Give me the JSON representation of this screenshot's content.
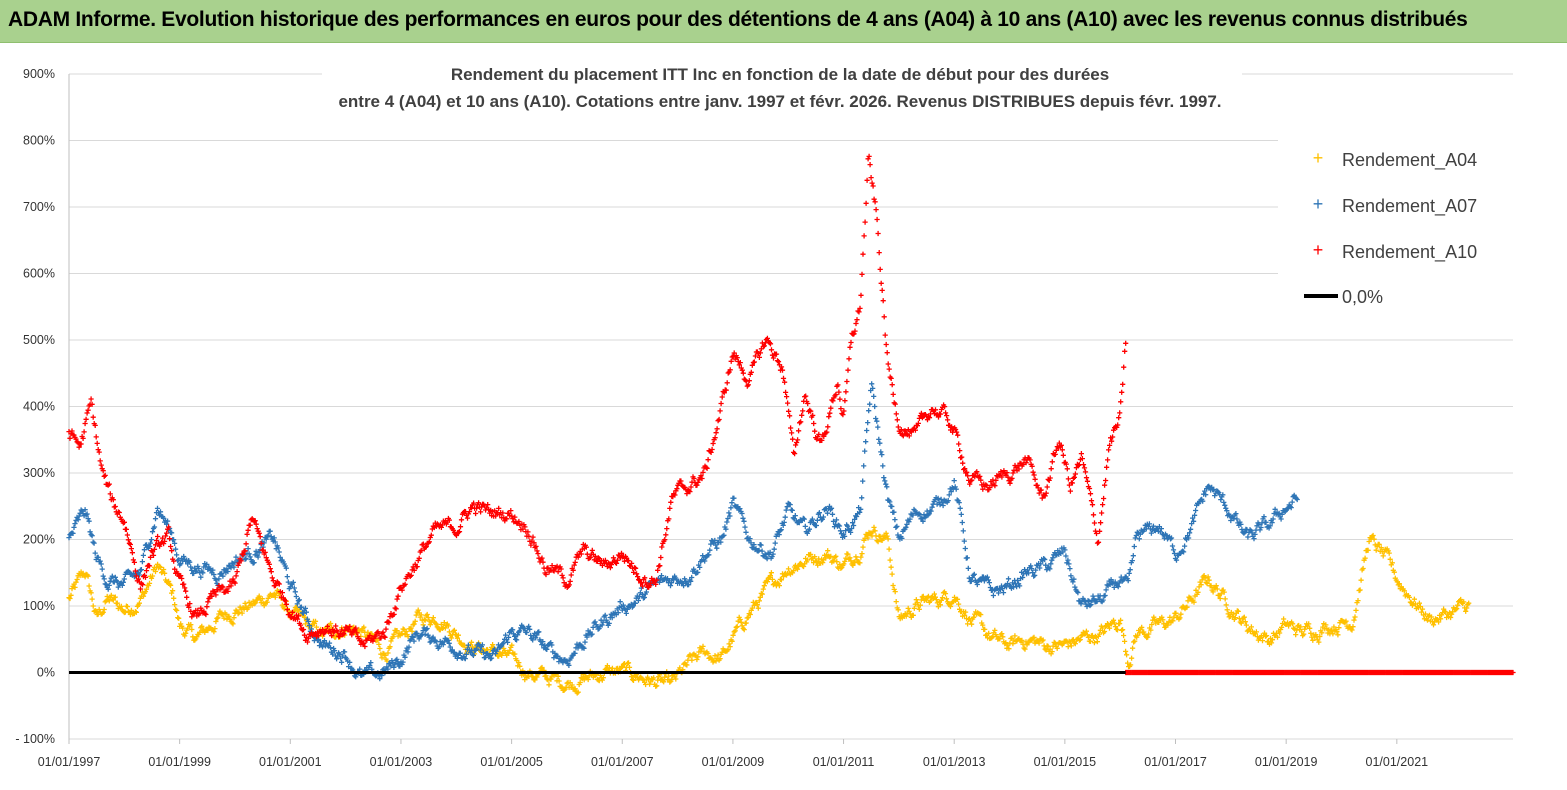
{
  "banner": {
    "title": "ADAM Informe. Evolution historique des performances en euros pour des détentions de 4 ans (A04) à 10 ans (A10) avec les revenus connus distribués"
  },
  "chart_data": {
    "type": "scatter",
    "title_line1": "Rendement du placement ITT Inc en fonction de la date de début pour des durées",
    "title_line2": "entre 4 (A04) et 10 ans (A10). Cotations entre janv. 1997 et févr. 2026. Revenus DISTRIBUES depuis févr. 1997.",
    "xlabel": "",
    "ylabel": "",
    "xlim": [
      1997.0,
      2023.1
    ],
    "ylim": [
      -100,
      900
    ],
    "y_ticks": [
      -100,
      0,
      100,
      200,
      300,
      400,
      500,
      600,
      700,
      800,
      900
    ],
    "y_tick_labels": [
      "- 100%",
      "0%",
      "100%",
      "200%",
      "300%",
      "400%",
      "500%",
      "600%",
      "700%",
      "800%",
      "900%"
    ],
    "x_ticks": [
      1997,
      1999,
      2001,
      2003,
      2005,
      2007,
      2009,
      2011,
      2013,
      2015,
      2017,
      2019,
      2021
    ],
    "x_tick_labels": [
      "01/01/1997",
      "01/01/1999",
      "01/01/2001",
      "01/01/2003",
      "01/01/2005",
      "01/01/2007",
      "01/01/2009",
      "01/01/2011",
      "01/01/2013",
      "01/01/2015",
      "01/01/2017",
      "01/01/2019",
      "01/01/2021"
    ],
    "grid": "horizontal",
    "legend_position": "right",
    "series": [
      {
        "name": "Rendement_A04",
        "color": "#ffc000",
        "x": [
          1997.0,
          1997.3,
          1997.5,
          1997.7,
          1998.0,
          1998.3,
          1998.6,
          1998.9,
          1999.0,
          1999.3,
          1999.7,
          2000.0,
          2000.3,
          2000.7,
          2001.0,
          2001.3,
          2001.6,
          2002.0,
          2002.3,
          2002.7,
          2003.0,
          2003.3,
          2003.7,
          2004.0,
          2004.3,
          2004.7,
          2005.0,
          2005.3,
          2005.7,
          2006.0,
          2006.3,
          2006.7,
          2007.0,
          2007.3,
          2007.6,
          2007.9,
          2008.2,
          2008.5,
          2008.8,
          2009.0,
          2009.3,
          2009.7,
          2010.0,
          2010.3,
          2010.7,
          2011.0,
          2011.3,
          2011.5,
          2011.8,
          2012.0,
          2012.3,
          2012.7,
          2013.0,
          2013.3,
          2013.7,
          2014.0,
          2014.3,
          2014.7,
          2015.0,
          2015.3,
          2015.7,
          2016.0,
          2016.15,
          2016.3,
          2016.7,
          2017.0,
          2017.3,
          2017.6,
          2018.0,
          2018.3,
          2018.7,
          2019.0,
          2019.3,
          2019.7,
          2020.0,
          2020.2,
          2020.5,
          2020.8,
          2021.0,
          2021.3,
          2021.6,
          2022.0,
          2022.3
        ],
        "y": [
          110,
          150,
          80,
          110,
          95,
          110,
          160,
          110,
          70,
          50,
          80,
          95,
          100,
          120,
          90,
          70,
          55,
          70,
          60,
          30,
          50,
          80,
          85,
          60,
          40,
          30,
          20,
          0,
          -10,
          -15,
          -10,
          0,
          0,
          -5,
          -15,
          -20,
          10,
          30,
          20,
          50,
          90,
          130,
          160,
          170,
          180,
          160,
          190,
          220,
          200,
          80,
          100,
          110,
          120,
          80,
          50,
          40,
          50,
          40,
          40,
          50,
          60,
          80,
          20,
          60,
          70,
          80,
          110,
          140,
          100,
          70,
          50,
          70,
          60,
          70,
          75,
          80,
          200,
          170,
          140,
          110,
          80,
          90,
          100
        ]
      },
      {
        "name": "Rendement_A07",
        "color": "#2e75b6",
        "x": [
          1997.0,
          1997.3,
          1997.5,
          1997.7,
          1998.0,
          1998.3,
          1998.6,
          1998.9,
          1999.0,
          1999.3,
          1999.7,
          2000.0,
          2000.3,
          2000.7,
          2001.0,
          2001.3,
          2001.6,
          2002.0,
          2002.3,
          2002.7,
          2003.0,
          2003.3,
          2003.7,
          2004.0,
          2004.3,
          2004.7,
          2005.0,
          2005.3,
          2005.7,
          2006.0,
          2006.3,
          2006.7,
          2007.0,
          2007.3,
          2007.6,
          2007.9,
          2008.2,
          2008.5,
          2008.8,
          2009.0,
          2009.3,
          2009.7,
          2010.0,
          2010.3,
          2010.7,
          2011.0,
          2011.3,
          2011.5,
          2011.8,
          2012.0,
          2012.3,
          2012.7,
          2013.0,
          2013.3,
          2013.7,
          2014.0,
          2014.3,
          2014.7,
          2015.0,
          2015.3,
          2015.7,
          2016.0,
          2016.15,
          2016.3,
          2016.7,
          2017.0,
          2017.3,
          2017.6,
          2018.0,
          2018.3,
          2018.7,
          2019.0,
          2019.2
        ],
        "y": [
          200,
          240,
          170,
          140,
          130,
          150,
          250,
          200,
          170,
          160,
          150,
          170,
          180,
          200,
          130,
          80,
          40,
          30,
          -10,
          0,
          20,
          60,
          50,
          40,
          30,
          20,
          60,
          60,
          30,
          20,
          50,
          80,
          100,
          110,
          130,
          140,
          150,
          180,
          200,
          250,
          200,
          180,
          240,
          210,
          250,
          210,
          240,
          430,
          260,
          200,
          240,
          250,
          290,
          140,
          120,
          130,
          150,
          160,
          180,
          100,
          110,
          140,
          120,
          200,
          220,
          180,
          220,
          280,
          240,
          200,
          220,
          250,
          260
        ]
      },
      {
        "name": "Rendement_A10",
        "color": "#ff0000",
        "x": [
          1997.0,
          1997.2,
          1997.4,
          1997.6,
          1997.8,
          1998.0,
          1998.3,
          1998.5,
          1998.8,
          1999.0,
          1999.3,
          1999.6,
          2000.0,
          2000.3,
          2000.7,
          2001.0,
          2001.3,
          2001.6,
          2002.0,
          2002.3,
          2002.7,
          2003.0,
          2003.3,
          2003.6,
          2004.0,
          2004.3,
          2004.6,
          2005.0,
          2005.3,
          2005.6,
          2006.0,
          2006.3,
          2006.7,
          2007.0,
          2007.3,
          2007.6,
          2007.9,
          2008.2,
          2008.5,
          2008.8,
          2009.0,
          2009.3,
          2009.6,
          2009.9,
          2010.1,
          2010.3,
          2010.6,
          2010.9,
          2011.0,
          2011.15,
          2011.3,
          2011.45,
          2011.6,
          2011.8,
          2012.0,
          2012.3,
          2012.6,
          2012.9,
          2013.0,
          2013.3,
          2013.6,
          2014.0,
          2014.3,
          2014.6,
          2014.9,
          2015.1,
          2015.3,
          2015.6,
          2015.8,
          2016.0,
          2016.1
        ],
        "y": [
          360,
          340,
          400,
          300,
          250,
          230,
          130,
          180,
          200,
          130,
          80,
          110,
          130,
          230,
          140,
          100,
          60,
          70,
          60,
          40,
          60,
          130,
          170,
          210,
          220,
          250,
          240,
          240,
          220,
          160,
          140,
          180,
          160,
          180,
          150,
          140,
          260,
          280,
          300,
          400,
          480,
          440,
          500,
          460,
          320,
          420,
          340,
          440,
          380,
          500,
          550,
          770,
          680,
          460,
          380,
          350,
          400,
          380,
          360,
          290,
          280,
          300,
          320,
          260,
          350,
          280,
          320,
          200,
          340,
          380,
          490
        ]
      },
      {
        "name": "0,0%",
        "color": "#000000",
        "type": "line",
        "x": [
          1997.0,
          2016.1
        ],
        "y": [
          0,
          0
        ]
      }
    ],
    "a10_zero_segment": {
      "x": [
        2016.1,
        2023.1
      ],
      "y": [
        0,
        0
      ]
    }
  }
}
